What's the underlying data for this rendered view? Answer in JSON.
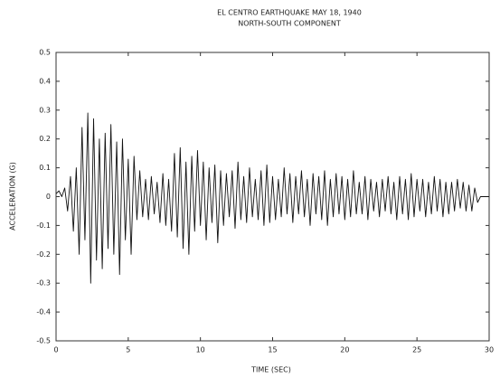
{
  "chart_data": {
    "type": "line",
    "title": "EL CENTRO EARTHQUAKE  MAY 18, 1940",
    "subtitle": "NORTH-SOUTH COMPONENT",
    "xlabel": "TIME (SEC)",
    "ylabel": "ACCELERATION (G)",
    "xlim": [
      0,
      30
    ],
    "xticks": [
      0,
      5,
      10,
      15,
      20,
      25,
      30
    ],
    "ylim": [
      -0.5,
      0.5
    ],
    "yticks": [
      -0.5,
      -0.4,
      -0.3,
      -0.2,
      -0.1,
      0,
      0.1,
      0.2,
      0.3,
      0.4,
      0.5
    ],
    "color": "#111111",
    "x": [
      0,
      0.2,
      0.4,
      0.6,
      0.8,
      1.0,
      1.2,
      1.4,
      1.6,
      1.8,
      2.0,
      2.2,
      2.4,
      2.6,
      2.8,
      3.0,
      3.2,
      3.4,
      3.6,
      3.8,
      4.0,
      4.2,
      4.4,
      4.6,
      4.8,
      5.0,
      5.2,
      5.4,
      5.6,
      5.8,
      6.0,
      6.2,
      6.4,
      6.6,
      6.8,
      7.0,
      7.2,
      7.4,
      7.6,
      7.8,
      8.0,
      8.2,
      8.4,
      8.6,
      8.8,
      9.0,
      9.2,
      9.4,
      9.6,
      9.8,
      10.0,
      10.2,
      10.4,
      10.6,
      10.8,
      11.0,
      11.2,
      11.4,
      11.6,
      11.8,
      12.0,
      12.2,
      12.4,
      12.6,
      12.8,
      13.0,
      13.2,
      13.4,
      13.6,
      13.8,
      14.0,
      14.2,
      14.4,
      14.6,
      14.8,
      15.0,
      15.2,
      15.4,
      15.6,
      15.8,
      16.0,
      16.2,
      16.4,
      16.6,
      16.8,
      17.0,
      17.2,
      17.4,
      17.6,
      17.8,
      18.0,
      18.2,
      18.4,
      18.6,
      18.8,
      19.0,
      19.2,
      19.4,
      19.6,
      19.8,
      20.0,
      20.2,
      20.4,
      20.6,
      20.8,
      21.0,
      21.2,
      21.4,
      21.6,
      21.8,
      22.0,
      22.2,
      22.4,
      22.6,
      22.8,
      23.0,
      23.2,
      23.4,
      23.6,
      23.8,
      24.0,
      24.2,
      24.4,
      24.6,
      24.8,
      25.0,
      25.2,
      25.4,
      25.6,
      25.8,
      26.0,
      26.2,
      26.4,
      26.6,
      26.8,
      27.0,
      27.2,
      27.4,
      27.6,
      27.8,
      28.0,
      28.2,
      28.4,
      28.6,
      28.8,
      29.0,
      29.2,
      29.4,
      29.6,
      29.8,
      30.0
    ],
    "values": [
      0.01,
      0.02,
      0.0,
      0.03,
      -0.05,
      0.07,
      -0.12,
      0.1,
      -0.2,
      0.24,
      -0.15,
      0.29,
      -0.3,
      0.27,
      -0.22,
      0.2,
      -0.25,
      0.22,
      -0.18,
      0.25,
      -0.2,
      0.19,
      -0.27,
      0.2,
      -0.15,
      0.13,
      -0.2,
      0.14,
      -0.08,
      0.09,
      -0.07,
      0.06,
      -0.08,
      0.07,
      -0.06,
      0.05,
      -0.09,
      0.08,
      -0.1,
      0.06,
      -0.12,
      0.15,
      -0.14,
      0.17,
      -0.18,
      0.12,
      -0.2,
      0.14,
      -0.12,
      0.16,
      -0.1,
      0.12,
      -0.15,
      0.1,
      -0.09,
      0.11,
      -0.16,
      0.09,
      -0.1,
      0.08,
      -0.07,
      0.09,
      -0.11,
      0.12,
      -0.08,
      0.07,
      -0.09,
      0.1,
      -0.07,
      0.06,
      -0.08,
      0.09,
      -0.1,
      0.11,
      -0.09,
      0.07,
      -0.08,
      0.06,
      -0.07,
      0.1,
      -0.06,
      0.08,
      -0.09,
      0.07,
      -0.06,
      0.09,
      -0.07,
      0.06,
      -0.1,
      0.08,
      -0.06,
      0.07,
      -0.08,
      0.09,
      -0.1,
      0.06,
      -0.07,
      0.08,
      -0.06,
      0.07,
      -0.08,
      0.06,
      -0.07,
      0.09,
      -0.06,
      0.05,
      -0.06,
      0.07,
      -0.08,
      0.06,
      -0.05,
      0.05,
      -0.07,
      0.06,
      -0.05,
      0.07,
      -0.06,
      0.05,
      -0.08,
      0.07,
      -0.06,
      0.06,
      -0.08,
      0.08,
      -0.07,
      0.06,
      -0.05,
      0.06,
      -0.07,
      0.05,
      -0.06,
      0.07,
      -0.05,
      0.06,
      -0.07,
      0.05,
      -0.06,
      0.05,
      -0.05,
      0.06,
      -0.04,
      0.05,
      -0.05,
      0.04,
      -0.05,
      0.03,
      -0.02,
      0.0,
      0.0,
      0.0,
      0.0
    ]
  }
}
